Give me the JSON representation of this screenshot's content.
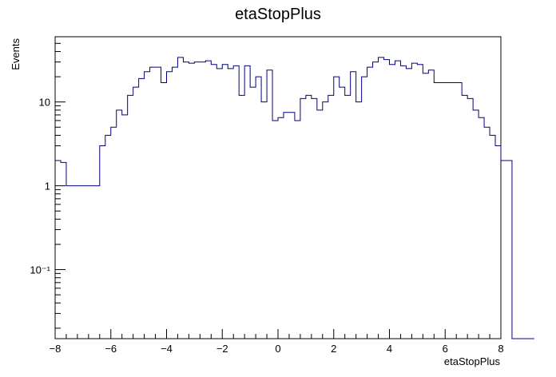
{
  "chart_data": {
    "type": "histogram",
    "title": "etaStopPlus",
    "xlabel": "etaStopPlus",
    "ylabel": "Events",
    "xlim": [
      -8,
      8
    ],
    "ylim": [
      0.015,
      60
    ],
    "yscale": "log",
    "grid": false,
    "legend": "none",
    "line_color": "#00007f",
    "x_ticks": [
      -8,
      -6,
      -4,
      -2,
      0,
      2,
      4,
      6,
      8
    ],
    "x_tick_labels": [
      "−8",
      "−6",
      "−4",
      "−2",
      "0",
      "2",
      "4",
      "6",
      "8"
    ],
    "y_ticks": [
      0.1,
      1,
      10
    ],
    "y_tick_labels": [
      "10⁻¹",
      "1",
      "10"
    ],
    "bin_width": 0.2,
    "bin_edges_start": -8,
    "values": [
      2,
      1.9,
      1,
      1,
      1,
      1,
      1,
      1,
      3,
      4,
      5,
      8,
      7,
      12,
      15,
      19,
      23,
      26,
      26,
      17,
      23,
      26,
      34,
      30,
      29,
      30,
      30,
      31,
      28,
      25,
      28,
      25,
      27,
      12,
      27,
      15,
      20,
      10,
      24,
      6,
      6.5,
      7.5,
      7.5,
      6,
      11,
      12,
      11,
      8,
      10,
      12,
      20,
      15,
      12,
      23,
      10,
      20,
      26,
      30,
      34,
      32,
      28,
      31,
      27,
      25,
      29,
      28,
      22,
      24,
      17,
      17,
      17,
      17,
      17,
      12,
      11,
      8,
      6.5,
      5,
      4,
      3,
      2,
      2,
      0,
      0,
      0,
      0
    ]
  }
}
